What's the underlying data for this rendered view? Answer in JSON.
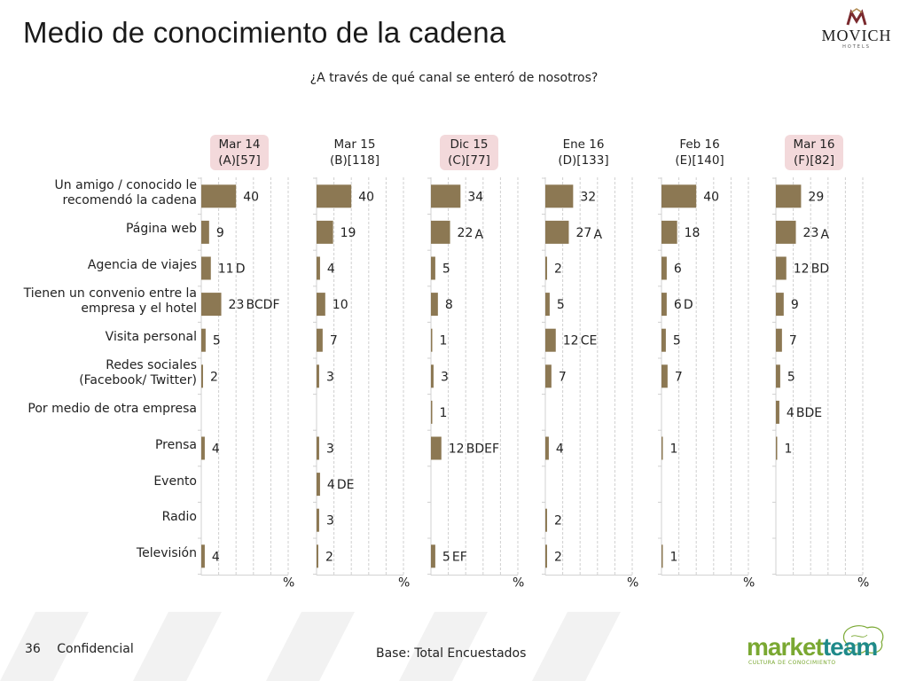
{
  "title": "Medio de conocimiento de la cadena",
  "subtitle": "¿A través de qué canal se enteró de nosotros?",
  "brand_logo": "MOVICH",
  "brand_logo_sub": "HOTELS",
  "footer": {
    "page_number": "36",
    "confidential": "Confidencial",
    "base": "Base: Total Encuestados"
  },
  "marketteam_logo": {
    "market": "market",
    "team": "team",
    "tagline": "CULTURA DE CONOCIMIENTO"
  },
  "colors": {
    "bar": "#8c7853",
    "highlight": "#f3d9db",
    "grid": "#cfcfcf",
    "market_green": "#7aa832",
    "team_teal": "#1f8a8a"
  },
  "columns": [
    {
      "line1": "Mar 14",
      "line2": "(A)[57]",
      "highlighted": true
    },
    {
      "line1": "Mar 15",
      "line2": "(B)[118]",
      "highlighted": false
    },
    {
      "line1": "Dic 15",
      "line2": "(C)[77]",
      "highlighted": true
    },
    {
      "line1": "Ene 16",
      "line2": "(D)[133]",
      "highlighted": false
    },
    {
      "line1": "Feb 16",
      "line2": "(E)[140]",
      "highlighted": false
    },
    {
      "line1": "Mar 16",
      "line2": "(F)[82]",
      "highlighted": true
    }
  ],
  "row_labels": [
    [
      "Un amigo / conocido le",
      "recomendó la cadena"
    ],
    [
      "Página web"
    ],
    [
      "Agencia de viajes"
    ],
    [
      "Tienen un convenio entre la",
      "empresa y el hotel"
    ],
    [
      "Visita personal"
    ],
    [
      "Redes sociales",
      "(Facebook/ Twitter)"
    ],
    [
      "Por medio de otra empresa"
    ],
    [
      "Prensa"
    ],
    [
      "Evento"
    ],
    [
      "Radio"
    ],
    [
      "Televisión"
    ]
  ],
  "axis_unit": "%",
  "chart_data": {
    "type": "bar",
    "orientation": "horizontal",
    "xlim": [
      0,
      100
    ],
    "grid": true,
    "categories": [
      "Un amigo / conocido le recomendó la cadena",
      "Página web",
      "Agencia de viajes",
      "Tienen un convenio entre la empresa y el hotel",
      "Visita personal",
      "Redes sociales (Facebook/ Twitter)",
      "Por medio de otra empresa",
      "Prensa",
      "Evento",
      "Radio",
      "Televisión"
    ],
    "series": [
      {
        "name": "Mar 14 (A)[57]",
        "values": [
          40,
          9,
          11,
          23,
          5,
          2,
          null,
          4,
          null,
          null,
          4
        ],
        "sig": [
          "",
          "",
          "D",
          "BCDF",
          "",
          "",
          "",
          "",
          "",
          "",
          ""
        ]
      },
      {
        "name": "Mar 15 (B)[118]",
        "values": [
          40,
          19,
          4,
          10,
          7,
          3,
          null,
          3,
          4,
          3,
          2
        ],
        "sig": [
          "",
          "",
          "",
          "",
          "",
          "",
          "",
          "",
          "DE",
          "",
          ""
        ]
      },
      {
        "name": "Dic 15 (C)[77]",
        "values": [
          34,
          22,
          5,
          8,
          1,
          3,
          1,
          12,
          null,
          null,
          5
        ],
        "sig": [
          "",
          "A",
          "",
          "",
          "",
          "",
          "",
          "BDEF",
          "",
          "",
          "EF"
        ]
      },
      {
        "name": "Ene 16 (D)[133]",
        "values": [
          32,
          27,
          2,
          5,
          12,
          7,
          null,
          4,
          null,
          2,
          2
        ],
        "sig": [
          "",
          "A",
          "",
          "",
          "CE",
          "",
          "",
          "",
          "",
          "",
          ""
        ]
      },
      {
        "name": "Feb 16 (E)[140]",
        "values": [
          40,
          18,
          6,
          6,
          5,
          7,
          null,
          1,
          null,
          null,
          1
        ],
        "sig": [
          "",
          "",
          "",
          "D",
          "",
          "",
          "",
          "",
          "",
          "",
          ""
        ]
      },
      {
        "name": "Mar 16 (F)[82]",
        "values": [
          29,
          23,
          12,
          9,
          7,
          5,
          4,
          1,
          null,
          null,
          null
        ],
        "sig": [
          "",
          "A",
          "BD",
          "",
          "",
          "",
          "BDE",
          "",
          "",
          "",
          ""
        ]
      }
    ]
  }
}
